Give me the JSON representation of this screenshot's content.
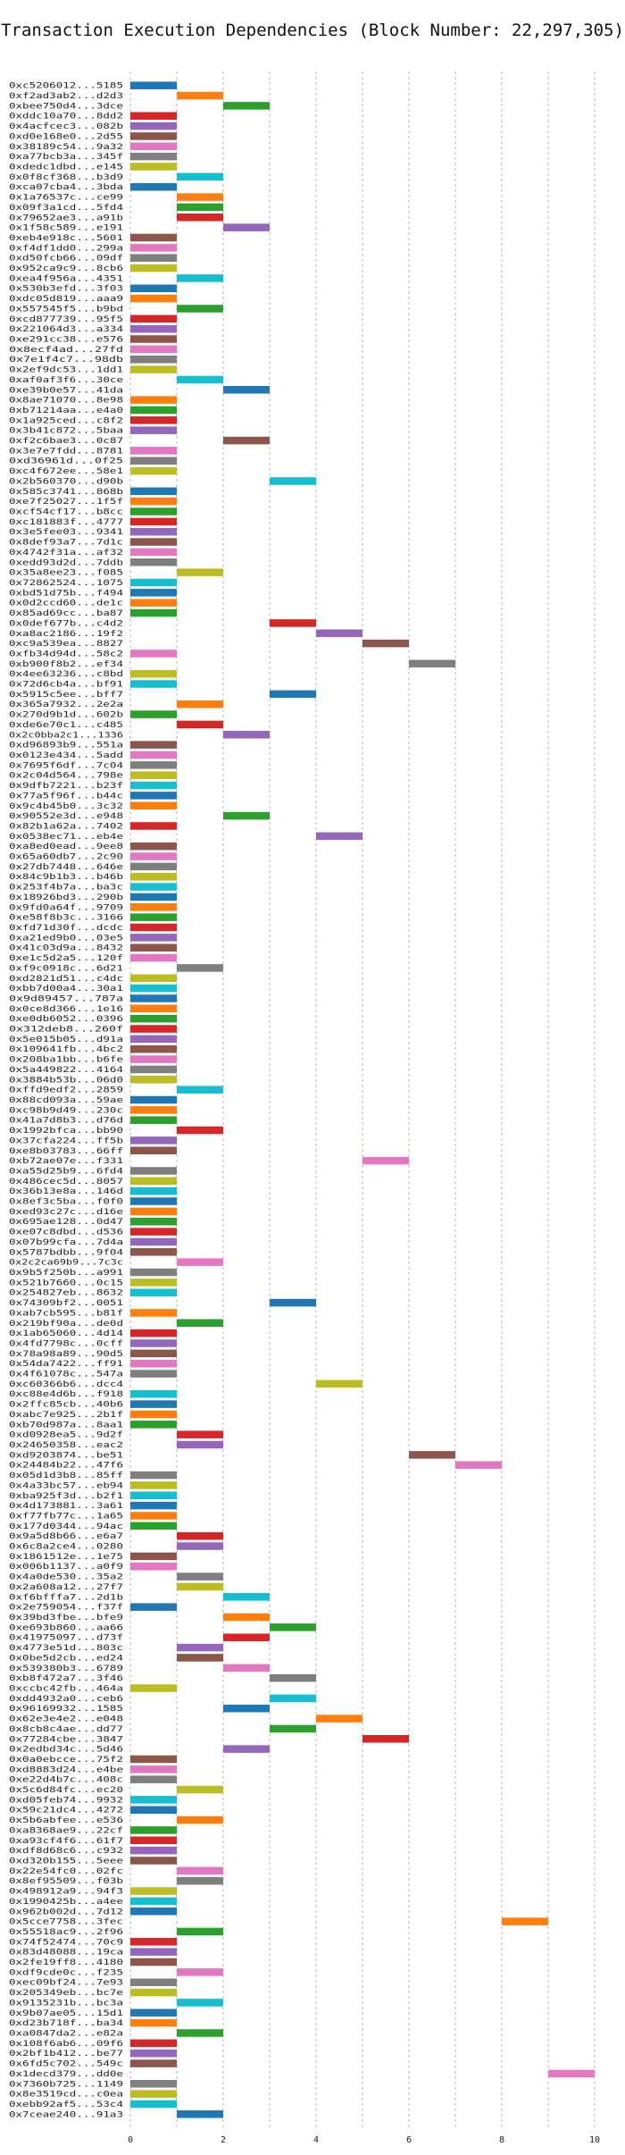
{
  "chart_data": {
    "type": "bar",
    "orientation": "horizontal-range",
    "title": "Transaction Execution Dependencies (Block Number: 22,297,305)",
    "xlim": [
      0,
      10
    ],
    "x_ticks": [
      0,
      2,
      4,
      6,
      8,
      10
    ],
    "grid": true,
    "palette": [
      "#1f77b4",
      "#ff7f0e",
      "#2ca02c",
      "#d62728",
      "#9467bd",
      "#8c564b",
      "#e377c2",
      "#7f7f7f",
      "#bcbd22",
      "#17becf"
    ],
    "transactions": [
      {
        "label": "0xc5206012...5185",
        "start": 0,
        "end": 1
      },
      {
        "label": "0xf2ad3ab2...d2d3",
        "start": 1,
        "end": 2
      },
      {
        "label": "0xbee750d4...3dce",
        "start": 2,
        "end": 3
      },
      {
        "label": "0xddc10a70...8dd2",
        "start": 0,
        "end": 1
      },
      {
        "label": "0x4acfcec3...082b",
        "start": 0,
        "end": 1
      },
      {
        "label": "0xd0e168e0...2d55",
        "start": 0,
        "end": 1
      },
      {
        "label": "0x38189c54...9a32",
        "start": 0,
        "end": 1
      },
      {
        "label": "0xa77bcb3a...345f",
        "start": 0,
        "end": 1
      },
      {
        "label": "0xdedc1dbd...e145",
        "start": 0,
        "end": 1
      },
      {
        "label": "0x0f8cf368...b3d9",
        "start": 1,
        "end": 2
      },
      {
        "label": "0xca07cba4...3bda",
        "start": 0,
        "end": 1
      },
      {
        "label": "0x1a76537c...ce99",
        "start": 1,
        "end": 2
      },
      {
        "label": "0x09f3a1cd...5fd4",
        "start": 1,
        "end": 2
      },
      {
        "label": "0x79652ae3...a91b",
        "start": 1,
        "end": 2
      },
      {
        "label": "0x1f58c589...e191",
        "start": 2,
        "end": 3
      },
      {
        "label": "0xeb4e918c...5601",
        "start": 0,
        "end": 1
      },
      {
        "label": "0xf4df1dd0...299a",
        "start": 0,
        "end": 1
      },
      {
        "label": "0xd50fcb66...09df",
        "start": 0,
        "end": 1
      },
      {
        "label": "0x952ca9c9...8cb6",
        "start": 0,
        "end": 1
      },
      {
        "label": "0xea4f956a...4351",
        "start": 1,
        "end": 2
      },
      {
        "label": "0x530b3efd...3f03",
        "start": 0,
        "end": 1
      },
      {
        "label": "0xdc05d819...aaa9",
        "start": 0,
        "end": 1
      },
      {
        "label": "0x557545f5...b9bd",
        "start": 1,
        "end": 2
      },
      {
        "label": "0xcd877739...95f5",
        "start": 0,
        "end": 1
      },
      {
        "label": "0x221064d3...a334",
        "start": 0,
        "end": 1
      },
      {
        "label": "0xe291cc38...e576",
        "start": 0,
        "end": 1
      },
      {
        "label": "0x8ecf4ad...27fd",
        "start": 0,
        "end": 1
      },
      {
        "label": "0x7e1f4c7...98db",
        "start": 0,
        "end": 1
      },
      {
        "label": "0x2ef9dc53...1dd1",
        "start": 0,
        "end": 1
      },
      {
        "label": "0xaf0af3f6...30ce",
        "start": 1,
        "end": 2
      },
      {
        "label": "0xe39b0e57...41da",
        "start": 2,
        "end": 3
      },
      {
        "label": "0x8ae71070...8e98",
        "start": 0,
        "end": 1
      },
      {
        "label": "0xb71214aa...e4a0",
        "start": 0,
        "end": 1
      },
      {
        "label": "0x1a925ced...c8f2",
        "start": 0,
        "end": 1
      },
      {
        "label": "0x3b41c872...5baa",
        "start": 0,
        "end": 1
      },
      {
        "label": "0xf2c6bae3...0c87",
        "start": 2,
        "end": 3
      },
      {
        "label": "0x3e7e7fdd...8781",
        "start": 0,
        "end": 1
      },
      {
        "label": "0xd36961d...0f25",
        "start": 0,
        "end": 1
      },
      {
        "label": "0xc4f672ee...58e1",
        "start": 0,
        "end": 1
      },
      {
        "label": "0x2b560370...d90b",
        "start": 3,
        "end": 4
      },
      {
        "label": "0x585c3741...868b",
        "start": 0,
        "end": 1
      },
      {
        "label": "0xe7f25027...1f5f",
        "start": 0,
        "end": 1
      },
      {
        "label": "0xcf54cf17...b8cc",
        "start": 0,
        "end": 1
      },
      {
        "label": "0xc181883f...4777",
        "start": 0,
        "end": 1
      },
      {
        "label": "0x3e5fee03...9341",
        "start": 0,
        "end": 1
      },
      {
        "label": "0x8def93a7...7d1c",
        "start": 0,
        "end": 1
      },
      {
        "label": "0x4742f31a...af32",
        "start": 0,
        "end": 1
      },
      {
        "label": "0xedd93d2d...7ddb",
        "start": 0,
        "end": 1
      },
      {
        "label": "0x35a8ee23...f085",
        "start": 1,
        "end": 2
      },
      {
        "label": "0x72862524...1075",
        "start": 0,
        "end": 1
      },
      {
        "label": "0xbd51d75b...f494",
        "start": 0,
        "end": 1
      },
      {
        "label": "0x0d2ccd60...de1c",
        "start": 0,
        "end": 1
      },
      {
        "label": "0x85ad69cc...ba87",
        "start": 0,
        "end": 1
      },
      {
        "label": "0x0def677b...c4d2",
        "start": 3,
        "end": 4
      },
      {
        "label": "0xa8ac2186...19f2",
        "start": 4,
        "end": 5
      },
      {
        "label": "0xc9a539ea...8827",
        "start": 5,
        "end": 6
      },
      {
        "label": "0xfb34d94d...58c2",
        "start": 0,
        "end": 1
      },
      {
        "label": "0xb900f8b2...ef34",
        "start": 6,
        "end": 7
      },
      {
        "label": "0x4ee63236...c8bd",
        "start": 0,
        "end": 1
      },
      {
        "label": "0x72d6cb4a...bf91",
        "start": 0,
        "end": 1
      },
      {
        "label": "0x5915c5ee...bff7",
        "start": 3,
        "end": 4
      },
      {
        "label": "0x365a7932...2e2a",
        "start": 1,
        "end": 2
      },
      {
        "label": "0x270d9b1d...602b",
        "start": 0,
        "end": 1
      },
      {
        "label": "0xde6e70c1...c485",
        "start": 1,
        "end": 2
      },
      {
        "label": "0x2c0bba2c1...1336",
        "start": 2,
        "end": 3
      },
      {
        "label": "0xd96893b9...551a",
        "start": 0,
        "end": 1
      },
      {
        "label": "0x0123e434...5add",
        "start": 0,
        "end": 1
      },
      {
        "label": "0x7695f6df...7c04",
        "start": 0,
        "end": 1
      },
      {
        "label": "0x2c04d564...798e",
        "start": 0,
        "end": 1
      },
      {
        "label": "0x9dfb7221...b23f",
        "start": 0,
        "end": 1
      },
      {
        "label": "0x77a5f96f...b44c",
        "start": 0,
        "end": 1
      },
      {
        "label": "0x9c4b45b0...3c32",
        "start": 0,
        "end": 1
      },
      {
        "label": "0x90552e3d...e948",
        "start": 2,
        "end": 3
      },
      {
        "label": "0x82b1a62a...7402",
        "start": 0,
        "end": 1
      },
      {
        "label": "0x0538ec71...eb4e",
        "start": 4,
        "end": 5
      },
      {
        "label": "0xa8ed0ead...9ee8",
        "start": 0,
        "end": 1
      },
      {
        "label": "0x65a60db7...2c90",
        "start": 0,
        "end": 1
      },
      {
        "label": "0x27db7448...646e",
        "start": 0,
        "end": 1
      },
      {
        "label": "0x84c9b1b3...b46b",
        "start": 0,
        "end": 1
      },
      {
        "label": "0x253f4b7a...ba3c",
        "start": 0,
        "end": 1
      },
      {
        "label": "0x18926bd3...290b",
        "start": 0,
        "end": 1
      },
      {
        "label": "0x9fd0a64f...9709",
        "start": 0,
        "end": 1
      },
      {
        "label": "0xe58f8b3c...3166",
        "start": 0,
        "end": 1
      },
      {
        "label": "0xfd71d30f...dcdc",
        "start": 0,
        "end": 1
      },
      {
        "label": "0xa21ed9b0...03e5",
        "start": 0,
        "end": 1
      },
      {
        "label": "0x41c03d9a...8432",
        "start": 0,
        "end": 1
      },
      {
        "label": "0xe1c5d2a5...120f",
        "start": 0,
        "end": 1
      },
      {
        "label": "0xf9c0918c...6d21",
        "start": 1,
        "end": 2
      },
      {
        "label": "0xd2821d51...c4dc",
        "start": 0,
        "end": 1
      },
      {
        "label": "0xbb7d00a4...30a1",
        "start": 0,
        "end": 1
      },
      {
        "label": "0x9d89457...787a",
        "start": 0,
        "end": 1
      },
      {
        "label": "0x0ce8d366...1e16",
        "start": 0,
        "end": 1
      },
      {
        "label": "0xe0db6052...0396",
        "start": 0,
        "end": 1
      },
      {
        "label": "0x312deb8...260f",
        "start": 0,
        "end": 1
      },
      {
        "label": "0x5e015b05...d91a",
        "start": 0,
        "end": 1
      },
      {
        "label": "0x109641fb...4bc2",
        "start": 0,
        "end": 1
      },
      {
        "label": "0x208ba1bb...b6fe",
        "start": 0,
        "end": 1
      },
      {
        "label": "0x5a449822...4164",
        "start": 0,
        "end": 1
      },
      {
        "label": "0x3884b53b...06d0",
        "start": 0,
        "end": 1
      },
      {
        "label": "0xffd9edf2...2859",
        "start": 1,
        "end": 2
      },
      {
        "label": "0x88cd093a...59ae",
        "start": 0,
        "end": 1
      },
      {
        "label": "0xc98b9d49...230c",
        "start": 0,
        "end": 1
      },
      {
        "label": "0x41a7d8b3...d76d",
        "start": 0,
        "end": 1
      },
      {
        "label": "0x1992bfca...bb90",
        "start": 1,
        "end": 2
      },
      {
        "label": "0x37cfa224...ff5b",
        "start": 0,
        "end": 1
      },
      {
        "label": "0xe8b03783...66ff",
        "start": 0,
        "end": 1
      },
      {
        "label": "0xb72ae07e...f331",
        "start": 5,
        "end": 6
      },
      {
        "label": "0xa55d25b9...6fd4",
        "start": 0,
        "end": 1
      },
      {
        "label": "0x486cec5d...8057",
        "start": 0,
        "end": 1
      },
      {
        "label": "0x36b13e8a...146d",
        "start": 0,
        "end": 1
      },
      {
        "label": "0x8ef3c5ba...f0f0",
        "start": 0,
        "end": 1
      },
      {
        "label": "0xed93c27c...d16e",
        "start": 0,
        "end": 1
      },
      {
        "label": "0x695ae128...0d47",
        "start": 0,
        "end": 1
      },
      {
        "label": "0xe07c8dbd...d536",
        "start": 0,
        "end": 1
      },
      {
        "label": "0x07b99cfa...7d4a",
        "start": 0,
        "end": 1
      },
      {
        "label": "0x5787bdbb...9f04",
        "start": 0,
        "end": 1
      },
      {
        "label": "0x2c2ca69b9...7c3c",
        "start": 1,
        "end": 2
      },
      {
        "label": "0x9b5f250b...a991",
        "start": 0,
        "end": 1
      },
      {
        "label": "0x521b7660...0c15",
        "start": 0,
        "end": 1
      },
      {
        "label": "0x254827eb...8632",
        "start": 0,
        "end": 1
      },
      {
        "label": "0x74309bf2...0051",
        "start": 3,
        "end": 4
      },
      {
        "label": "0xab7cb595...b81f",
        "start": 0,
        "end": 1
      },
      {
        "label": "0x219bf90a...de0d",
        "start": 1,
        "end": 2
      },
      {
        "label": "0x1ab65060...4d14",
        "start": 0,
        "end": 1
      },
      {
        "label": "0x4fd7798c...0cff",
        "start": 0,
        "end": 1
      },
      {
        "label": "0x78a98a89...90d5",
        "start": 0,
        "end": 1
      },
      {
        "label": "0x54da7422...ff91",
        "start": 0,
        "end": 1
      },
      {
        "label": "0x4f61078c...547a",
        "start": 0,
        "end": 1
      },
      {
        "label": "0xc60366b6...dcc4",
        "start": 4,
        "end": 5
      },
      {
        "label": "0xc88e4d6b...f918",
        "start": 0,
        "end": 1
      },
      {
        "label": "0x2ffc85cb...40b6",
        "start": 0,
        "end": 1
      },
      {
        "label": "0xabc7e925...2b1f",
        "start": 0,
        "end": 1
      },
      {
        "label": "0xb70d987a...8aa1",
        "start": 0,
        "end": 1
      },
      {
        "label": "0xd0928ea5...9d2f",
        "start": 1,
        "end": 2
      },
      {
        "label": "0x24650358...eac2",
        "start": 1,
        "end": 2
      },
      {
        "label": "0xd9203874...be51",
        "start": 6,
        "end": 7
      },
      {
        "label": "0x24484b22...47f6",
        "start": 7,
        "end": 8
      },
      {
        "label": "0x05d1d3b8...85ff",
        "start": 0,
        "end": 1
      },
      {
        "label": "0x4a33bc57...eb94",
        "start": 0,
        "end": 1
      },
      {
        "label": "0xba925f3d...b2f1",
        "start": 0,
        "end": 1
      },
      {
        "label": "0x4d173881...3a61",
        "start": 0,
        "end": 1
      },
      {
        "label": "0xf77fb77c...1a65",
        "start": 0,
        "end": 1
      },
      {
        "label": "0x177d0344...94ac",
        "start": 0,
        "end": 1
      },
      {
        "label": "0x9a5d8b66...e6a7",
        "start": 1,
        "end": 2
      },
      {
        "label": "0x6c8a2ce4...0280",
        "start": 1,
        "end": 2
      },
      {
        "label": "0x1861512e...1e75",
        "start": 0,
        "end": 1
      },
      {
        "label": "0x006b1137...a0f9",
        "start": 0,
        "end": 1
      },
      {
        "label": "0x4a0de530...35a2",
        "start": 1,
        "end": 2
      },
      {
        "label": "0x2a608a12...27f7",
        "start": 1,
        "end": 2
      },
      {
        "label": "0xf6bfffa7...2d1b",
        "start": 2,
        "end": 3
      },
      {
        "label": "0x2e759054...f37f",
        "start": 0,
        "end": 1
      },
      {
        "label": "0x39bd3fbe...bfe9",
        "start": 2,
        "end": 3
      },
      {
        "label": "0xe693b860...aa66",
        "start": 3,
        "end": 4
      },
      {
        "label": "0x41975097...d73f",
        "start": 2,
        "end": 3
      },
      {
        "label": "0x4773e51d...803c",
        "start": 1,
        "end": 2
      },
      {
        "label": "0x0be5d2cb...ed24",
        "start": 1,
        "end": 2
      },
      {
        "label": "0x539380b3...6789",
        "start": 2,
        "end": 3
      },
      {
        "label": "0xb8f472a7...3f46",
        "start": 3,
        "end": 4
      },
      {
        "label": "0xccbc42fb...464a",
        "start": 0,
        "end": 1
      },
      {
        "label": "0xdd4932a0...ceb6",
        "start": 3,
        "end": 4
      },
      {
        "label": "0x96169932...1585",
        "start": 2,
        "end": 3
      },
      {
        "label": "0x62e3e4e2...e048",
        "start": 4,
        "end": 5
      },
      {
        "label": "0x8cb8c4ae...dd77",
        "start": 3,
        "end": 4
      },
      {
        "label": "0x77284cbe...3847",
        "start": 5,
        "end": 6
      },
      {
        "label": "0x2edbd34c...5d46",
        "start": 2,
        "end": 3
      },
      {
        "label": "0x0a0ebcce...75f2",
        "start": 0,
        "end": 1
      },
      {
        "label": "0xd8883d24...e4be",
        "start": 0,
        "end": 1
      },
      {
        "label": "0xe22d4b7c...408c",
        "start": 0,
        "end": 1
      },
      {
        "label": "0x5c6d84fc...ec20",
        "start": 1,
        "end": 2
      },
      {
        "label": "0xd05feb74...9932",
        "start": 0,
        "end": 1
      },
      {
        "label": "0x59c21dc4...4272",
        "start": 0,
        "end": 1
      },
      {
        "label": "0x5b6abfee...e536",
        "start": 1,
        "end": 2
      },
      {
        "label": "0xa8368ae9...22cf",
        "start": 0,
        "end": 1
      },
      {
        "label": "0xa93cf4f6...61f7",
        "start": 0,
        "end": 1
      },
      {
        "label": "0xdf8d68c6...c932",
        "start": 0,
        "end": 1
      },
      {
        "label": "0xd320b155...5eee",
        "start": 0,
        "end": 1
      },
      {
        "label": "0x22e54fc0...02fc",
        "start": 1,
        "end": 2
      },
      {
        "label": "0x8ef95509...f03b",
        "start": 1,
        "end": 2
      },
      {
        "label": "0x498912a9...94f3",
        "start": 0,
        "end": 1
      },
      {
        "label": "0x1990425b...a4ee",
        "start": 0,
        "end": 1
      },
      {
        "label": "0x962b002d...7d12",
        "start": 0,
        "end": 1
      },
      {
        "label": "0x5cce7758...3fec",
        "start": 8,
        "end": 9
      },
      {
        "label": "0x55518ac9...2f96",
        "start": 1,
        "end": 2
      },
      {
        "label": "0x74f52474...70c9",
        "start": 0,
        "end": 1
      },
      {
        "label": "0x83d48088...19ca",
        "start": 0,
        "end": 1
      },
      {
        "label": "0x2fe19ff8...4180",
        "start": 0,
        "end": 1
      },
      {
        "label": "0xdf9cde0c...f235",
        "start": 1,
        "end": 2
      },
      {
        "label": "0xec09bf24...7e93",
        "start": 0,
        "end": 1
      },
      {
        "label": "0x205349eb...bc7e",
        "start": 0,
        "end": 1
      },
      {
        "label": "0x9135231b...bc3a",
        "start": 1,
        "end": 2
      },
      {
        "label": "0x9b07ae05...15d1",
        "start": 0,
        "end": 1
      },
      {
        "label": "0xd23b718f...ba34",
        "start": 0,
        "end": 1
      },
      {
        "label": "0xa0847da2...e82a",
        "start": 1,
        "end": 2
      },
      {
        "label": "0x108f6ab6...09f6",
        "start": 0,
        "end": 1
      },
      {
        "label": "0x2bf1b412...be77",
        "start": 0,
        "end": 1
      },
      {
        "label": "0x6fd5c702...549c",
        "start": 0,
        "end": 1
      },
      {
        "label": "0x1decd379...dd0e",
        "start": 9,
        "end": 10
      },
      {
        "label": "0x7360b725...1149",
        "start": 0,
        "end": 1
      },
      {
        "label": "0x8e3519cd...c0ea",
        "start": 0,
        "end": 1
      },
      {
        "label": "0xebb92af5...53c4",
        "start": 0,
        "end": 1
      },
      {
        "label": "0x7ceae240...91a3",
        "start": 1,
        "end": 2
      }
    ]
  }
}
